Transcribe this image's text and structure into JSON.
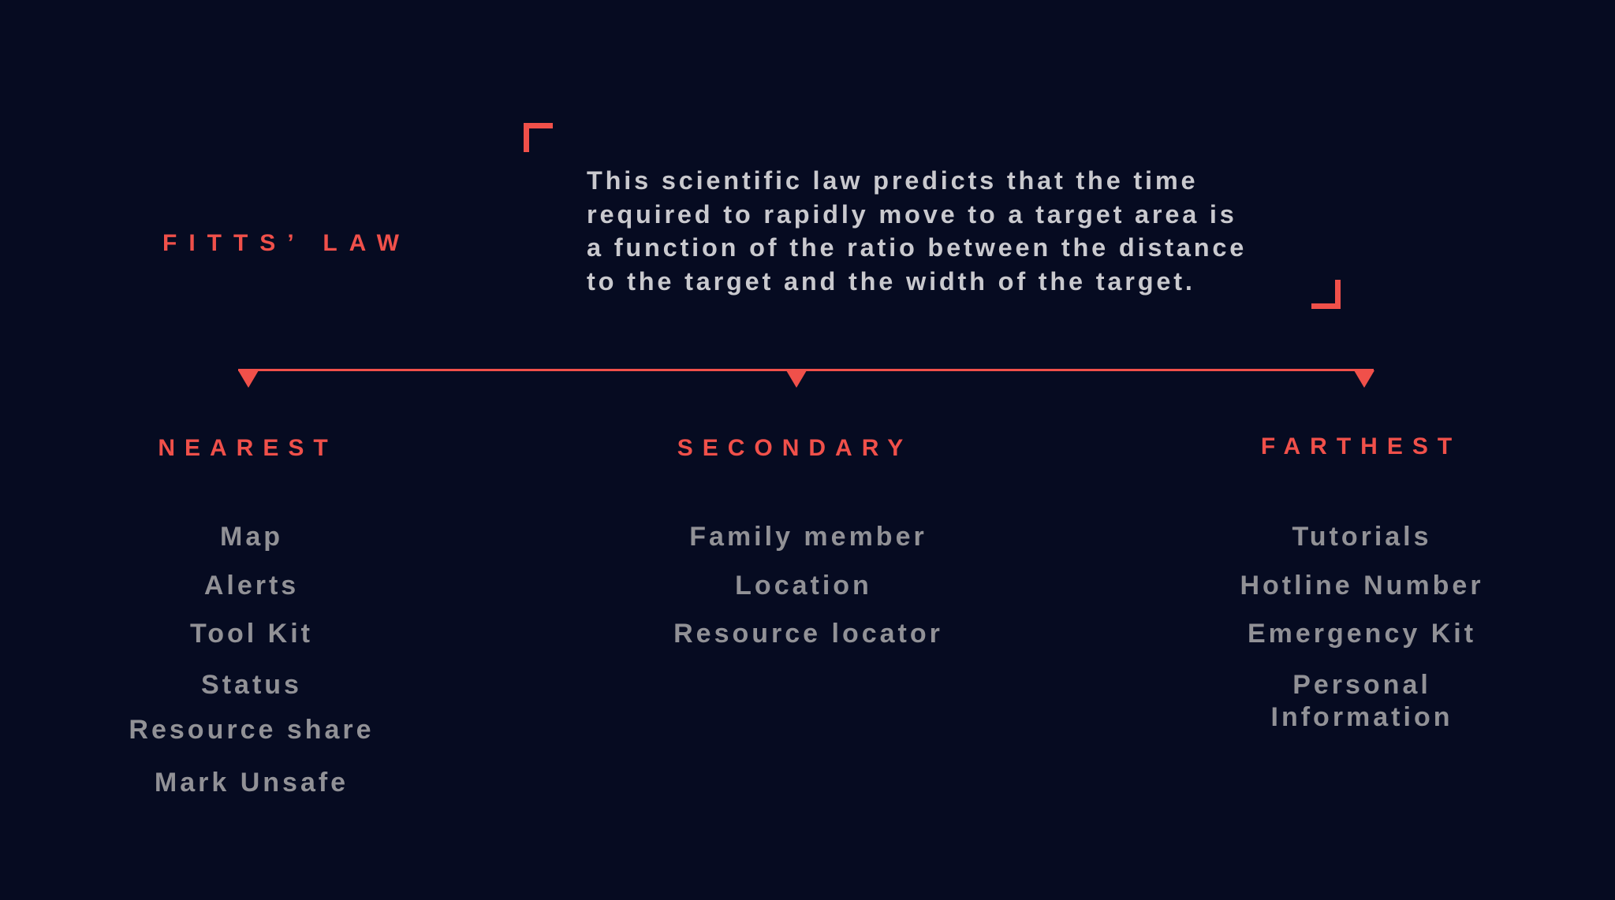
{
  "title": "FITTS’ LAW",
  "definition": [
    "This scientific law predicts that the time",
    "required to rapidly move to a target area is",
    "a function of the ratio between the distance",
    "to the target and the width of the target."
  ],
  "colors": {
    "background": "#060b21",
    "accent": "#f0504a",
    "body_text": "#c9c9ce",
    "item_text": "#919196"
  },
  "columns": [
    {
      "heading": "NEAREST",
      "items": [
        "Map",
        "Alerts",
        "Tool Kit",
        "Status",
        "Resource share",
        "Mark Unsafe"
      ]
    },
    {
      "heading": "SECONDARY",
      "items": [
        "Family member",
        "Location",
        "Resource locator"
      ]
    },
    {
      "heading": "FARTHEST",
      "items": [
        "Tutorials",
        "Hotline Number",
        "Emergency Kit",
        "Personal",
        "Information"
      ]
    }
  ]
}
